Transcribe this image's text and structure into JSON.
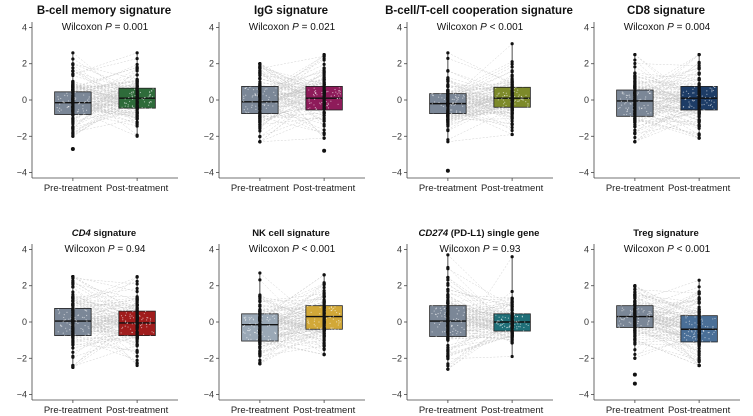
{
  "chart_data": {
    "type": "box",
    "y_ticks": [
      -4,
      -2,
      0,
      2,
      4
    ],
    "ylim": [
      -4.3,
      4.3
    ],
    "categories": [
      "Pre-treatment",
      "Post-treatment"
    ],
    "panels": [
      {
        "title": "B-cell memory signature",
        "title_italic_prefix": "",
        "stat_prefix": "Wilcoxon ",
        "stat_symbol": "P",
        "stat_value": " = 0.001",
        "pre": {
          "q1": -0.8,
          "median": -0.15,
          "q3": 0.45,
          "lower": -2.0,
          "upper": 2.6,
          "outliers": [
            -2.7
          ],
          "color": "#7b8797"
        },
        "post": {
          "q1": -0.45,
          "median": 0.1,
          "q3": 0.65,
          "lower": -2.0,
          "upper": 2.6,
          "outliers": [],
          "color": "#2e6b3a"
        }
      },
      {
        "title": "IgG signature",
        "title_italic_prefix": "",
        "stat_prefix": "Wilcoxon ",
        "stat_symbol": "P",
        "stat_value": " = 0.021",
        "pre": {
          "q1": -0.75,
          "median": -0.1,
          "q3": 0.75,
          "lower": -2.3,
          "upper": 2.0,
          "outliers": [],
          "color": "#7b8797"
        },
        "post": {
          "q1": -0.55,
          "median": 0.1,
          "q3": 0.75,
          "lower": -2.1,
          "upper": 2.5,
          "outliers": [
            -2.8
          ],
          "color": "#8e1b5a"
        }
      },
      {
        "title": "B-cell/T-cell cooperation signature",
        "title_italic_prefix": "",
        "stat_prefix": "Wilcoxon ",
        "stat_symbol": "P",
        "stat_value": " < 0.001",
        "pre": {
          "q1": -0.75,
          "median": -0.2,
          "q3": 0.35,
          "lower": -2.3,
          "upper": 2.6,
          "outliers": [
            -3.9
          ],
          "color": "#7b8797"
        },
        "post": {
          "q1": -0.4,
          "median": 0.1,
          "q3": 0.7,
          "lower": -1.9,
          "upper": 3.1,
          "outliers": [],
          "color": "#7d8a2a"
        }
      },
      {
        "title": "CD8 signature",
        "title_italic_prefix": "",
        "stat_prefix": "Wilcoxon ",
        "stat_symbol": "P",
        "stat_value": " = 0.004",
        "pre": {
          "q1": -0.9,
          "median": -0.05,
          "q3": 0.55,
          "lower": -2.3,
          "upper": 2.5,
          "outliers": [],
          "color": "#7b8797"
        },
        "post": {
          "q1": -0.55,
          "median": 0.1,
          "q3": 0.75,
          "lower": -2.1,
          "upper": 2.5,
          "outliers": [],
          "color": "#1d3c66"
        }
      },
      {
        "title": " signature",
        "title_italic_prefix": "CD4",
        "stat_prefix": "Wilcoxon ",
        "stat_symbol": "P",
        "stat_value": " = 0.94",
        "pre": {
          "q1": -0.75,
          "median": 0.05,
          "q3": 0.75,
          "lower": -2.5,
          "upper": 2.5,
          "outliers": [],
          "color": "#7b8797"
        },
        "post": {
          "q1": -0.75,
          "median": -0.05,
          "q3": 0.6,
          "lower": -2.4,
          "upper": 2.5,
          "outliers": [],
          "color": "#a01c1c"
        }
      },
      {
        "title": "NK cell signature",
        "title_italic_prefix": "",
        "stat_prefix": "Wilcoxon ",
        "stat_symbol": "P",
        "stat_value": " < 0.001",
        "pre": {
          "q1": -1.05,
          "median": -0.15,
          "q3": 0.45,
          "lower": -2.3,
          "upper": 2.7,
          "outliers": [],
          "color": "#9aa8b6"
        },
        "post": {
          "q1": -0.4,
          "median": 0.3,
          "q3": 0.9,
          "lower": -1.8,
          "upper": 2.6,
          "outliers": [],
          "color": "#d2a838"
        }
      },
      {
        "title": " (PD-L1) single gene",
        "title_italic_prefix": "CD274",
        "stat_prefix": "Wilcoxon ",
        "stat_symbol": "P",
        "stat_value": " = 0.93",
        "pre": {
          "q1": -0.8,
          "median": 0.05,
          "q3": 0.9,
          "lower": -2.6,
          "upper": 3.7,
          "outliers": [],
          "color": "#7b8797"
        },
        "post": {
          "q1": -0.5,
          "median": 0.0,
          "q3": 0.45,
          "lower": -1.9,
          "upper": 3.6,
          "outliers": [],
          "color": "#1f6f78"
        }
      },
      {
        "title": "Treg signature",
        "title_italic_prefix": "",
        "stat_prefix": "Wilcoxon ",
        "stat_symbol": "P",
        "stat_value": " < 0.001",
        "pre": {
          "q1": -0.3,
          "median": 0.3,
          "q3": 0.9,
          "lower": -2.0,
          "upper": 2.0,
          "outliers": [
            -2.9,
            -3.4
          ],
          "color": "#7b8797"
        },
        "post": {
          "q1": -1.1,
          "median": -0.4,
          "q3": 0.35,
          "lower": -2.4,
          "upper": 2.3,
          "outliers": [],
          "color": "#4a6f97"
        }
      }
    ]
  }
}
